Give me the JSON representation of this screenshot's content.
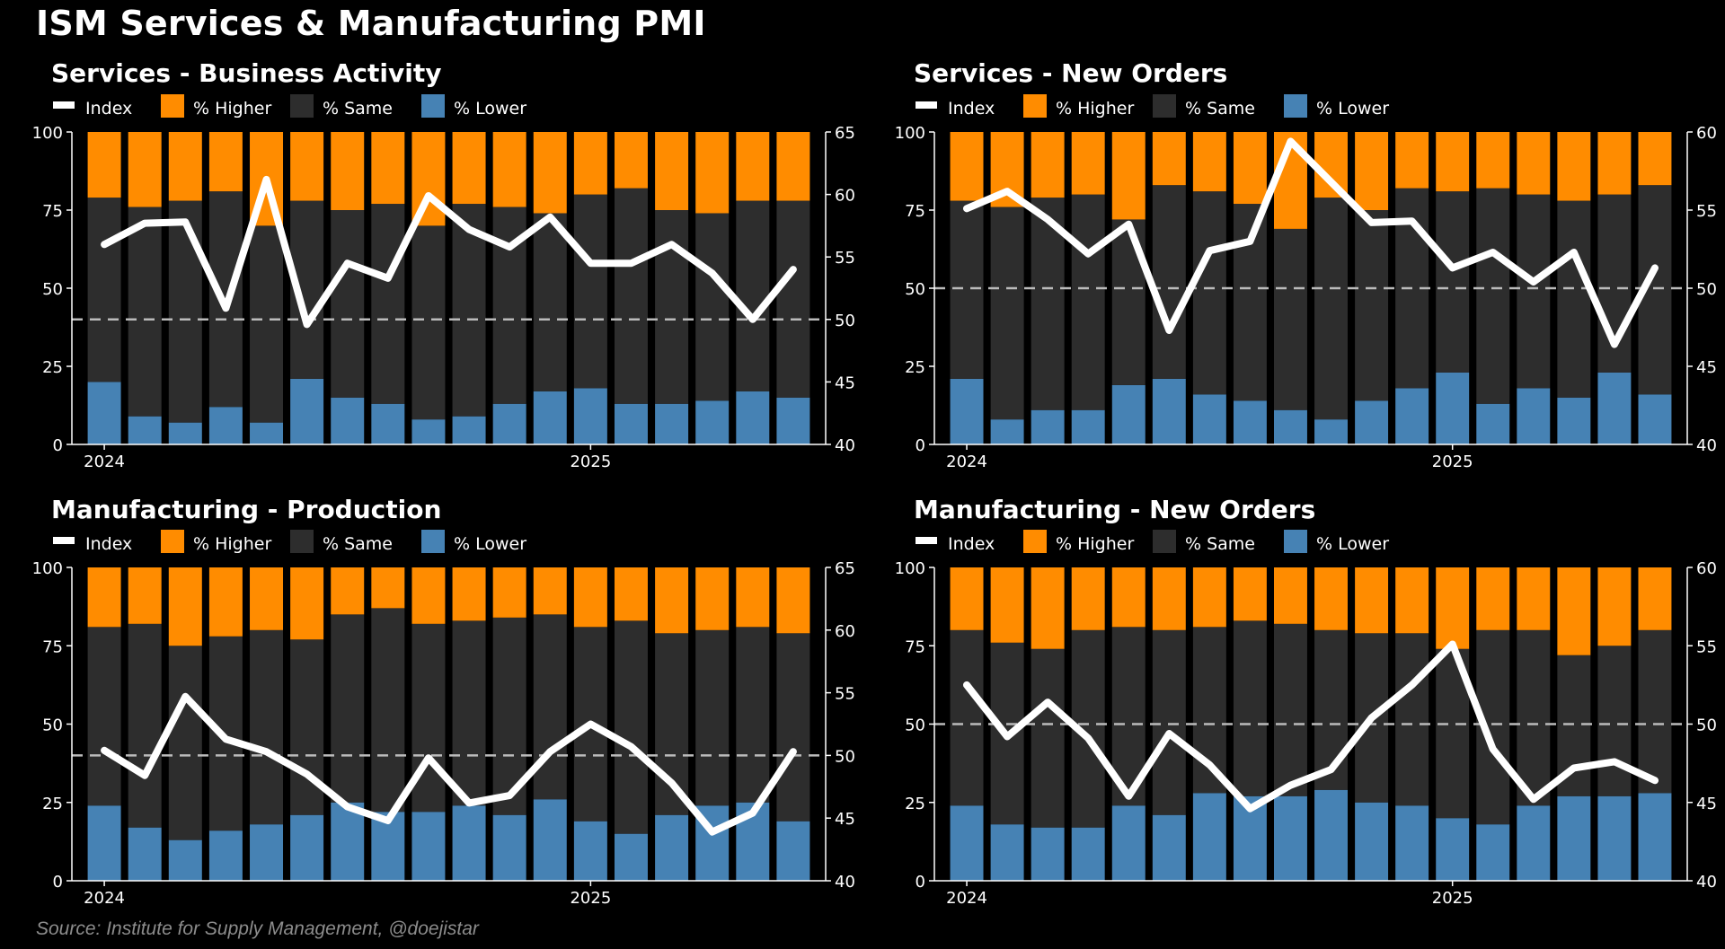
{
  "title": "ISM Services & Manufacturing PMI",
  "source": "Source: Institute for Supply Management, @doejistar",
  "colors": {
    "higher": "#FF8C00",
    "same": "#2D2D2D",
    "lower": "#4682B4",
    "index": "#FFFFFF",
    "reference": "#BBBBBB",
    "axis": "#FFFFFF"
  },
  "legend_labels": [
    "Index",
    "% Higher",
    "% Same",
    "% Lower"
  ],
  "chart_data": [
    {
      "type": "bar",
      "title": "Services - Business Activity",
      "x_ticks": [
        "2024",
        "2025"
      ],
      "x_tick_index": [
        0,
        12
      ],
      "left_ylim": [
        0,
        100
      ],
      "left_ticks": [
        0,
        25,
        50,
        75,
        100
      ],
      "right_ylim": [
        40,
        65
      ],
      "right_ticks": [
        40,
        45,
        50,
        55,
        60,
        65
      ],
      "reference_line": 50,
      "higher": [
        21,
        24,
        22,
        19,
        30,
        22,
        25,
        23,
        30,
        23,
        24,
        26,
        20,
        18,
        25,
        26,
        22,
        22
      ],
      "lower": [
        20,
        9,
        7,
        12,
        7,
        21,
        15,
        13,
        8,
        9,
        13,
        17,
        18,
        13,
        13,
        14,
        17,
        15
      ],
      "index": [
        56.0,
        57.7,
        57.8,
        50.9,
        61.2,
        49.6,
        54.5,
        53.3,
        59.9,
        57.2,
        55.8,
        58.2,
        54.5,
        54.5,
        56.0,
        53.7,
        50.0,
        54.0
      ]
    },
    {
      "type": "bar",
      "title": "Services - New Orders",
      "x_ticks": [
        "2024",
        "2025"
      ],
      "x_tick_index": [
        0,
        12
      ],
      "left_ylim": [
        0,
        100
      ],
      "left_ticks": [
        0,
        25,
        50,
        75,
        100
      ],
      "right_ylim": [
        40,
        60
      ],
      "right_ticks": [
        40,
        45,
        50,
        55,
        60
      ],
      "reference_line": 50,
      "higher": [
        22,
        24,
        21,
        20,
        28,
        17,
        19,
        23,
        31,
        21,
        25,
        18,
        19,
        18,
        20,
        22,
        20,
        17
      ],
      "lower": [
        21,
        8,
        11,
        11,
        19,
        21,
        16,
        14,
        11,
        8,
        14,
        18,
        23,
        13,
        18,
        15,
        23,
        16
      ],
      "index": [
        55.1,
        56.2,
        54.4,
        52.2,
        54.1,
        47.3,
        52.4,
        53.0,
        59.4,
        56.8,
        54.2,
        54.3,
        51.3,
        52.3,
        50.4,
        52.3,
        46.4,
        51.3
      ]
    },
    {
      "type": "bar",
      "title": "Manufacturing - Production",
      "x_ticks": [
        "2024",
        "2025"
      ],
      "x_tick_index": [
        0,
        12
      ],
      "left_ylim": [
        0,
        100
      ],
      "left_ticks": [
        0,
        25,
        50,
        75,
        100
      ],
      "right_ylim": [
        40,
        65
      ],
      "right_ticks": [
        40,
        45,
        50,
        55,
        60,
        65
      ],
      "reference_line": 50,
      "higher": [
        19,
        18,
        25,
        22,
        20,
        23,
        15,
        13,
        18,
        17,
        16,
        15,
        19,
        17,
        21,
        20,
        19,
        21
      ],
      "lower": [
        24,
        17,
        13,
        16,
        18,
        21,
        25,
        22,
        22,
        24,
        21,
        26,
        19,
        15,
        21,
        24,
        25,
        19
      ],
      "index": [
        50.4,
        48.4,
        54.7,
        51.3,
        50.3,
        48.5,
        45.9,
        44.8,
        49.8,
        46.2,
        46.8,
        50.3,
        52.5,
        50.7,
        47.8,
        43.9,
        45.4,
        50.3
      ]
    },
    {
      "type": "bar",
      "title": "Manufacturing - New Orders",
      "x_ticks": [
        "2024",
        "2025"
      ],
      "x_tick_index": [
        0,
        12
      ],
      "left_ylim": [
        0,
        100
      ],
      "left_ticks": [
        0,
        25,
        50,
        75,
        100
      ],
      "right_ylim": [
        40,
        60
      ],
      "right_ticks": [
        40,
        45,
        50,
        55,
        60
      ],
      "reference_line": 50,
      "higher": [
        20,
        24,
        26,
        20,
        19,
        20,
        19,
        17,
        18,
        20,
        21,
        21,
        26,
        20,
        20,
        28,
        25,
        20
      ],
      "lower": [
        24,
        18,
        17,
        17,
        24,
        21,
        28,
        27,
        27,
        29,
        25,
        24,
        20,
        18,
        24,
        27,
        27,
        28
      ],
      "index": [
        52.5,
        49.2,
        51.4,
        49.1,
        45.4,
        49.4,
        47.4,
        44.6,
        46.1,
        47.1,
        50.4,
        52.5,
        55.1,
        48.4,
        45.2,
        47.2,
        47.6,
        46.4
      ]
    }
  ]
}
